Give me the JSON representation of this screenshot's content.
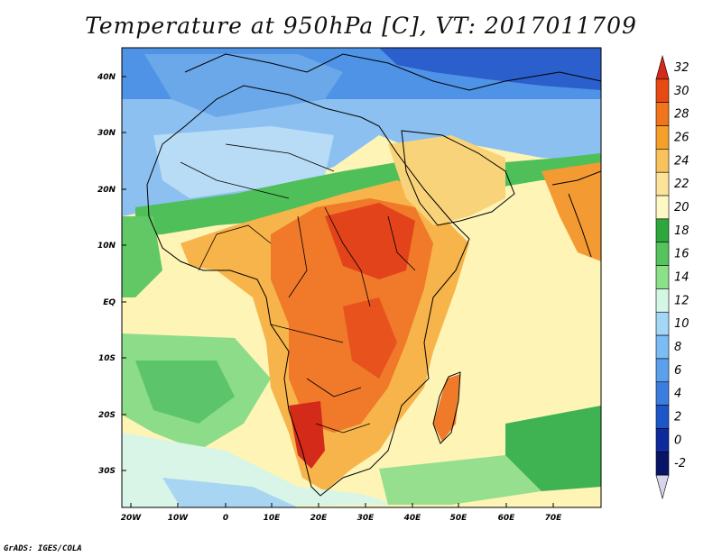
{
  "title": "Temperature at 950hPa [C], VT: 2017011709",
  "footer": "GrADS: IGES/COLA",
  "x_ticks": [
    "20W",
    "10W",
    "0",
    "10E",
    "20E",
    "30E",
    "40E",
    "50E",
    "60E",
    "70E"
  ],
  "y_ticks": [
    "40N",
    "30N",
    "20N",
    "10N",
    "EQ",
    "10S",
    "20S",
    "30S"
  ],
  "colorbar": {
    "labels": [
      "32",
      "30",
      "28",
      "26",
      "24",
      "22",
      "20",
      "18",
      "16",
      "14",
      "12",
      "10",
      "8",
      "6",
      "4",
      "2",
      "0",
      "-2"
    ],
    "colors": [
      "#d42a1a",
      "#e84a14",
      "#f2751c",
      "#f6a02c",
      "#f8c35c",
      "#fbe39a",
      "#fef8c4",
      "#2ea83c",
      "#55c45c",
      "#8ce08a",
      "#d4f6e4",
      "#a4d6f6",
      "#7cbcf4",
      "#5aa0ec",
      "#3c7ee0",
      "#1c56c8",
      "#0e2a9c",
      "#081468",
      "#d8d4ec"
    ]
  },
  "map": {
    "background": "#fdf6bc"
  }
}
